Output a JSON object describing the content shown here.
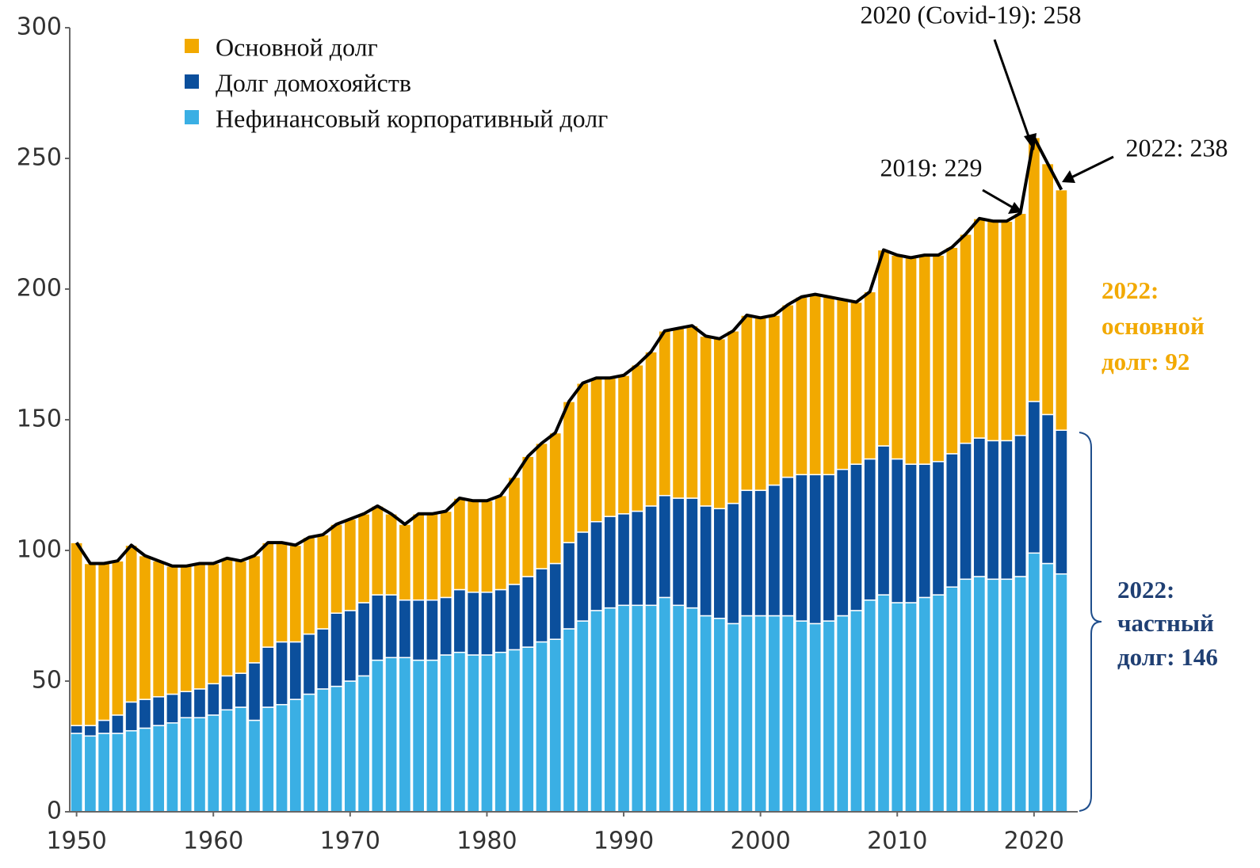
{
  "chart_data": {
    "type": "stacked-bar",
    "x": [
      1950,
      1951,
      1952,
      1953,
      1954,
      1955,
      1956,
      1957,
      1958,
      1959,
      1960,
      1961,
      1962,
      1963,
      1964,
      1965,
      1966,
      1967,
      1968,
      1969,
      1970,
      1971,
      1972,
      1973,
      1974,
      1975,
      1976,
      1977,
      1978,
      1979,
      1980,
      1981,
      1982,
      1983,
      1984,
      1985,
      1986,
      1987,
      1988,
      1989,
      1990,
      1991,
      1992,
      1993,
      1994,
      1995,
      1996,
      1997,
      1998,
      1999,
      2000,
      2001,
      2002,
      2003,
      2004,
      2005,
      2006,
      2007,
      2008,
      2009,
      2010,
      2011,
      2012,
      2013,
      2014,
      2015,
      2016,
      2017,
      2018,
      2019,
      2020,
      2021,
      2022
    ],
    "series": [
      {
        "name": "Нефинансовый корпоративный долг",
        "color": "#3aafe4",
        "values": [
          30,
          29,
          30,
          30,
          31,
          32,
          33,
          34,
          36,
          36,
          37,
          39,
          40,
          35,
          40,
          41,
          43,
          45,
          47,
          48,
          50,
          52,
          58,
          59,
          59,
          58,
          58,
          60,
          61,
          60,
          60,
          61,
          62,
          63,
          65,
          66,
          70,
          73,
          77,
          78,
          79,
          79,
          79,
          82,
          79,
          78,
          75,
          74,
          72,
          75,
          75,
          75,
          75,
          73,
          72,
          73,
          75,
          77,
          81,
          83,
          80,
          80,
          82,
          83,
          86,
          89,
          90,
          89,
          89,
          90,
          99,
          95,
          91
        ]
      },
      {
        "name": "Долг домохояйств",
        "color": "#0b4f9c",
        "values": [
          3,
          4,
          5,
          7,
          11,
          11,
          11,
          11,
          10,
          11,
          12,
          13,
          13,
          22,
          23,
          24,
          22,
          23,
          23,
          28,
          27,
          28,
          25,
          24,
          22,
          23,
          23,
          22,
          24,
          24,
          24,
          24,
          25,
          27,
          28,
          29,
          33,
          34,
          34,
          35,
          35,
          36,
          38,
          39,
          41,
          42,
          42,
          42,
          46,
          48,
          48,
          50,
          53,
          56,
          57,
          56,
          56,
          56,
          54,
          57,
          55,
          53,
          51,
          51,
          51,
          52,
          53,
          53,
          53,
          54,
          58,
          57,
          55
        ]
      },
      {
        "name": "Основной долг",
        "color": "#f2a900",
        "values": [
          70,
          62,
          60,
          59,
          60,
          55,
          52,
          49,
          48,
          48,
          46,
          45,
          43,
          41,
          40,
          38,
          37,
          37,
          36,
          34,
          35,
          34,
          34,
          31,
          29,
          33,
          33,
          33,
          35,
          35,
          35,
          36,
          41,
          46,
          48,
          50,
          54,
          57,
          55,
          53,
          53,
          56,
          59,
          63,
          65,
          66,
          65,
          65,
          66,
          67,
          66,
          65,
          66,
          68,
          69,
          68,
          65,
          62,
          64,
          75,
          78,
          79,
          80,
          79,
          79,
          80,
          84,
          84,
          84,
          85,
          101,
          96,
          92
        ]
      }
    ],
    "legend_order": [
      2,
      1,
      0
    ],
    "xlim": [
      1949.5,
      2022.5
    ],
    "xticks": [
      1950,
      1960,
      1970,
      1980,
      1990,
      2000,
      2010,
      2020
    ],
    "ylim": [
      0,
      300
    ],
    "yticks": [
      0,
      50,
      100,
      150,
      200,
      250,
      300
    ],
    "annotations": [
      "2020 (Covid-19): 258",
      "2019: 229",
      "2022: 238"
    ],
    "public_label": [
      "2022:",
      "основной",
      "долг: 92"
    ],
    "private_label": [
      "2022:",
      "частный",
      "долг: 146"
    ]
  }
}
